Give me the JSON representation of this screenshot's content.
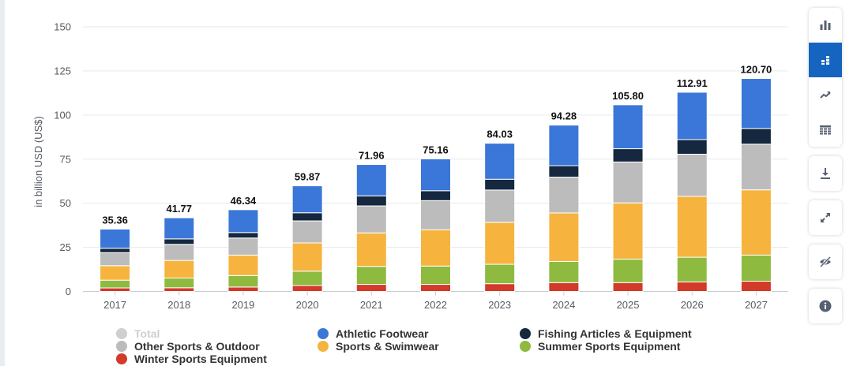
{
  "chart_data": {
    "type": "bar",
    "stacked": true,
    "ylabel": "in billion USD (US$)",
    "ylim": [
      0,
      150
    ],
    "yticks": [
      0,
      25,
      50,
      75,
      100,
      125,
      150
    ],
    "categories": [
      "2017",
      "2018",
      "2019",
      "2020",
      "2021",
      "2022",
      "2023",
      "2024",
      "2025",
      "2026",
      "2027"
    ],
    "totals": [
      "35.36",
      "41.77",
      "46.34",
      "59.87",
      "71.96",
      "75.16",
      "84.03",
      "94.28",
      "105.80",
      "112.91",
      "120.70"
    ],
    "series": [
      {
        "name": "Winter Sports Equipment",
        "color": "#d23a2a",
        "values": [
          2.0,
          2.1,
          2.5,
          3.4,
          4.0,
          4.0,
          4.4,
          5.0,
          5.0,
          5.4,
          5.8
        ]
      },
      {
        "name": "Summer Sports Equipment",
        "color": "#8ebb3f",
        "values": [
          4.4,
          5.5,
          6.5,
          8.1,
          10.2,
          10.4,
          11.0,
          12.0,
          13.3,
          14.0,
          14.8
        ]
      },
      {
        "name": "Sports & Swimwear",
        "color": "#f6b43e",
        "values": [
          8.2,
          10.0,
          11.6,
          16.0,
          19.0,
          20.6,
          23.8,
          27.5,
          31.9,
          34.5,
          37.0
        ]
      },
      {
        "name": "Other Sports & Outdoor",
        "color": "#bcbcbc",
        "values": [
          7.4,
          9.1,
          9.7,
          12.5,
          15.3,
          16.5,
          18.3,
          20.3,
          23.2,
          23.9,
          25.9
        ]
      },
      {
        "name": "Fishing Articles & Equipment",
        "color": "#15283f",
        "values": [
          2.5,
          3.1,
          3.1,
          4.6,
          5.7,
          5.6,
          6.1,
          6.5,
          7.5,
          8.3,
          8.9
        ]
      },
      {
        "name": "Athletic Footwear",
        "color": "#3a77d8",
        "values": [
          10.86,
          11.97,
          12.94,
          15.27,
          17.76,
          18.06,
          20.43,
          22.98,
          24.9,
          26.81,
          28.3
        ]
      }
    ]
  },
  "legend": {
    "items": [
      {
        "label": "Total",
        "color": "#cfcfcf",
        "state": "off"
      },
      {
        "label": "Athletic Footwear",
        "color": "#3a77d8",
        "state": "on"
      },
      {
        "label": "Fishing Articles & Equipment",
        "color": "#15283f",
        "state": "on"
      },
      {
        "label": "Other Sports & Outdoor",
        "color": "#bcbcbc",
        "state": "on"
      },
      {
        "label": "Sports & Swimwear",
        "color": "#f6b43e",
        "state": "on"
      },
      {
        "label": "Summer Sports Equipment",
        "color": "#8ebb3f",
        "state": "on"
      },
      {
        "label": "Winter Sports Equipment",
        "color": "#d23a2a",
        "state": "on"
      }
    ]
  },
  "toolbar": {
    "accent": "#1565c0",
    "buttons": [
      "bar-chart-icon",
      "stacked-bar-icon",
      "trend-line-icon",
      "table-icon",
      "download-icon",
      "fullscreen-icon",
      "hide-icon",
      "info-icon"
    ]
  }
}
